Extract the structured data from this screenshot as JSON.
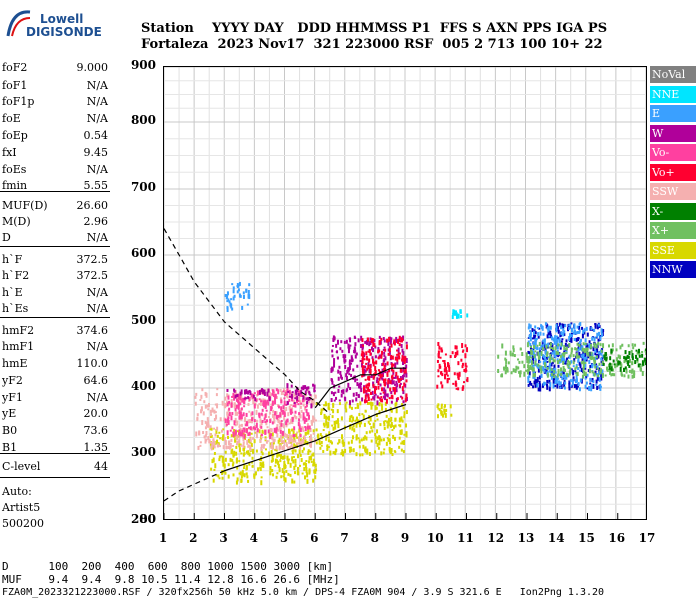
{
  "logo": {
    "line1": "Lowell",
    "line2": "DIGISONDE"
  },
  "header": {
    "row1": "Station    YYYY DAY   DDD HHMMSS P1  FFS S AXN PPS IGA PS",
    "row2": "Fortaleza  2023 Nov17  321 223000 RSF  005 2 713 100 10+ 22"
  },
  "params": [
    {
      "name": "foF2",
      "value": "9.000"
    },
    {
      "name": "foF1",
      "value": "N/A"
    },
    {
      "name": "foF1p",
      "value": "N/A"
    },
    {
      "name": "foE",
      "value": "N/A"
    },
    {
      "name": "foEp",
      "value": "0.54"
    },
    {
      "name": "fxI",
      "value": "9.45"
    },
    {
      "name": "foEs",
      "value": "N/A"
    },
    {
      "name": "fmin",
      "value": "5.55"
    },
    {
      "name": "MUF(D)",
      "value": "26.60"
    },
    {
      "name": "M(D)",
      "value": "2.96"
    },
    {
      "name": "D",
      "value": "N/A"
    },
    {
      "name": "h`F",
      "value": "372.5"
    },
    {
      "name": "h`F2",
      "value": "372.5"
    },
    {
      "name": "h`E",
      "value": "N/A"
    },
    {
      "name": "h`Es",
      "value": "N/A"
    },
    {
      "name": "hmF2",
      "value": "374.6"
    },
    {
      "name": "hmF1",
      "value": "N/A"
    },
    {
      "name": "hmE",
      "value": "110.0"
    },
    {
      "name": "yF2",
      "value": "64.6"
    },
    {
      "name": "yF1",
      "value": "N/A"
    },
    {
      "name": "yE",
      "value": "20.0"
    },
    {
      "name": "B0",
      "value": "73.6"
    },
    {
      "name": "B1",
      "value": "1.35"
    },
    {
      "name": "C-level",
      "value": "44"
    }
  ],
  "auto": {
    "line1": "Auto:",
    "line2": "Artist5",
    "line3": "500200"
  },
  "legend": [
    {
      "label": "NoVal",
      "color": "#808080"
    },
    {
      "label": "NNE",
      "color": "#00e5ff"
    },
    {
      "label": "E",
      "color": "#3aa0ff"
    },
    {
      "label": "W",
      "color": "#b0009a"
    },
    {
      "label": "Vo-",
      "color": "#ff40a0"
    },
    {
      "label": "Vo+",
      "color": "#ff0030"
    },
    {
      "label": "SSW",
      "color": "#f5b0b0"
    },
    {
      "label": "X-",
      "color": "#008000"
    },
    {
      "label": "X+",
      "color": "#70c060"
    },
    {
      "label": "SSE",
      "color": "#d8d800"
    },
    {
      "label": "NNW",
      "color": "#0000c0"
    }
  ],
  "chart_data": {
    "type": "scatter",
    "title": "",
    "xlabel": "",
    "ylabel": "",
    "xlim": [
      1,
      17
    ],
    "ylim": [
      80,
      900
    ],
    "x_ticks": [
      "1",
      "2",
      "3",
      "4",
      "5",
      "6",
      "7",
      "8",
      "9",
      "10",
      "11",
      "12",
      "13",
      "14",
      "15",
      "16",
      "17"
    ],
    "y_ticks": [
      "80",
      "200",
      "300",
      "400",
      "500",
      "600",
      "700",
      "800",
      "900"
    ],
    "grid": true,
    "curves": [
      {
        "name": "",
        "style": "dashed",
        "x": [
          1.0,
          1.5,
          2.0,
          2.5,
          3.0,
          3.5,
          4.0,
          4.5,
          5.0,
          5.5,
          6.0,
          6.5
        ],
        "y": [
          640,
          600,
          560,
          530,
          500,
          480,
          460,
          440,
          420,
          395,
          380,
          360
        ]
      },
      {
        "name": "",
        "style": "dashed",
        "x": [
          1.0,
          1.5,
          2.0,
          2.5,
          3.0
        ],
        "y": [
          230,
          245,
          255,
          265,
          275
        ]
      },
      {
        "name": "",
        "style": "solid",
        "x": [
          3.0,
          4.0,
          5.0,
          6.0,
          7.0,
          8.0,
          9.0
        ],
        "y": [
          275,
          290,
          305,
          320,
          340,
          360,
          375
        ]
      },
      {
        "name": "",
        "style": "solid",
        "x": [
          6.0,
          6.5,
          7.0,
          7.5,
          8.0,
          8.5,
          9.0
        ],
        "y": [
          370,
          400,
          410,
          420,
          420,
          430,
          430
        ]
      }
    ],
    "clusters": [
      {
        "series": "SSE",
        "x": [
          2.5,
          6.0
        ],
        "y": [
          260,
          340
        ]
      },
      {
        "series": "SSE",
        "x": [
          6.0,
          9.0
        ],
        "y": [
          300,
          380
        ]
      },
      {
        "series": "SSE",
        "x": [
          10.0,
          10.5
        ],
        "y": [
          360,
          380
        ]
      },
      {
        "series": "SSW",
        "x": [
          2.0,
          6.0
        ],
        "y": [
          310,
          400
        ]
      },
      {
        "series": "Vo-",
        "x": [
          3.0,
          5.8
        ],
        "y": [
          330,
          400
        ]
      },
      {
        "series": "W",
        "x": [
          3.0,
          4.5
        ],
        "y": [
          385,
          400
        ]
      },
      {
        "series": "W",
        "x": [
          5.0,
          6.0
        ],
        "y": [
          375,
          410
        ]
      },
      {
        "series": "W",
        "x": [
          6.5,
          9.0
        ],
        "y": [
          380,
          480
        ]
      },
      {
        "series": "Vo+",
        "x": [
          7.5,
          9.0
        ],
        "y": [
          380,
          480
        ]
      },
      {
        "series": "Vo+",
        "x": [
          10.0,
          11.0
        ],
        "y": [
          400,
          470
        ]
      },
      {
        "series": "E",
        "x": [
          3.0,
          3.8
        ],
        "y": [
          520,
          560
        ]
      },
      {
        "series": "NNE",
        "x": [
          10.5,
          11.0
        ],
        "y": [
          510,
          520
        ]
      },
      {
        "series": "NNW",
        "x": [
          13.0,
          15.5
        ],
        "y": [
          400,
          500
        ]
      },
      {
        "series": "E",
        "x": [
          13.0,
          15.5
        ],
        "y": [
          400,
          500
        ]
      },
      {
        "series": "X+",
        "x": [
          12.0,
          17.0
        ],
        "y": [
          420,
          470
        ]
      },
      {
        "series": "X-",
        "x": [
          15.5,
          17.0
        ],
        "y": [
          430,
          460
        ]
      }
    ]
  },
  "footer": {
    "line1": "D      100  200  400  600  800 1000 1500 3000 [km]",
    "line2": "MUF    9.4  9.4  9.8 10.5 11.4 12.8 16.6 26.6 [MHz]",
    "line3": "FZA0M_2023321223000.RSF / 320fx256h 50 kHz 5.0 km / DPS-4 FZA0M 904 / 3.9 S 321.6 E   Ion2Png 1.3.20"
  }
}
